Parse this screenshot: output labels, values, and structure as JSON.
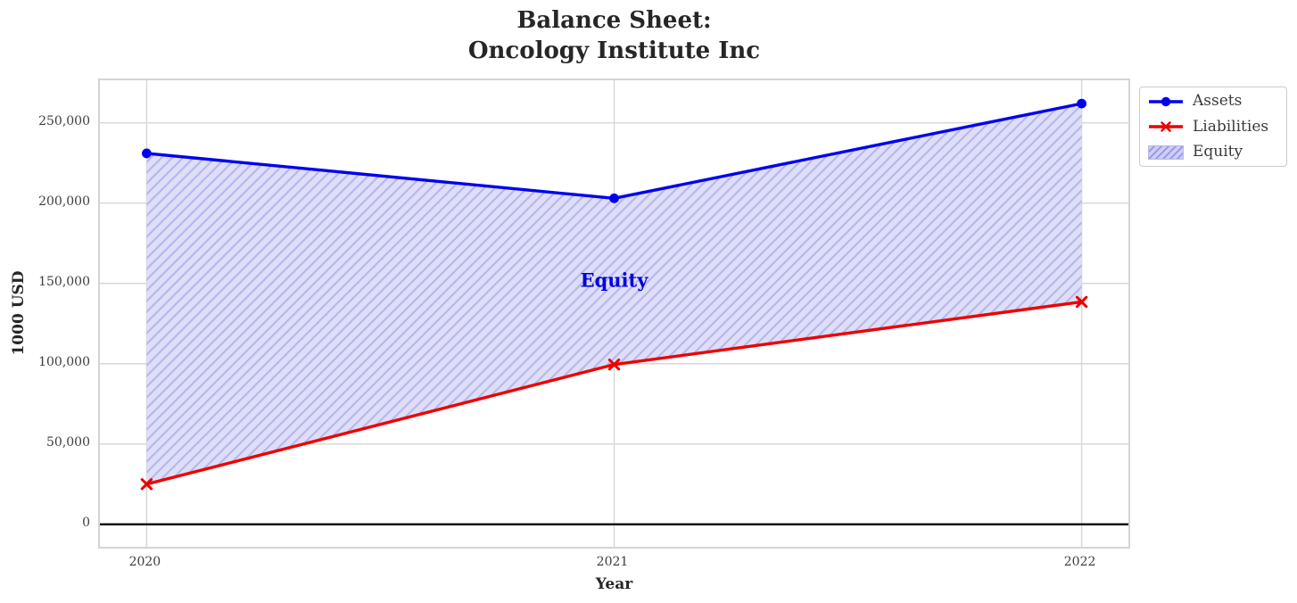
{
  "chart_data": {
    "type": "line",
    "title_lines": [
      "Balance Sheet:",
      "Oncology Institute Inc"
    ],
    "xlabel": "Year",
    "ylabel": "1000 USD",
    "x": [
      2020,
      2021,
      2022
    ],
    "xtick_labels": [
      "2020",
      "2021",
      "2022"
    ],
    "yticks": [
      0,
      50000,
      100000,
      150000,
      200000,
      250000
    ],
    "ytick_labels": [
      "0",
      "50,000",
      "100,000",
      "150,000",
      "200,000",
      "250,000"
    ],
    "xlim": [
      2019.9,
      2022.1
    ],
    "ylim": [
      -14000,
      276500
    ],
    "grid": true,
    "grid_color": "#d6d6d6",
    "zero_line": {
      "value": 0,
      "color": "#000000"
    },
    "series": [
      {
        "name": "Assets",
        "values": [
          231000,
          203000,
          262000
        ],
        "color": "#0000ee",
        "marker": "circle"
      },
      {
        "name": "Liabilities",
        "values": [
          25000,
          99500,
          138500
        ],
        "color": "#ee0000",
        "marker": "x"
      }
    ],
    "area": {
      "name": "Equity",
      "between": [
        "Assets",
        "Liabilities"
      ],
      "fill_color": "#dedef8",
      "hatch": "/",
      "hatch_color": "#b7b7ee",
      "annotation": {
        "text": "Equity",
        "color": "#0000dd",
        "x": 2021,
        "y": 152000
      }
    },
    "legend": {
      "position": "upper-right-outside",
      "entries": [
        {
          "label": "Assets",
          "type": "line-circle",
          "color": "#0000ee"
        },
        {
          "label": "Liabilities",
          "type": "line-x",
          "color": "#ee0000"
        },
        {
          "label": "Equity",
          "type": "hatch-patch",
          "fill": "#cecef5",
          "hatch_color": "#9595e6"
        }
      ]
    }
  }
}
